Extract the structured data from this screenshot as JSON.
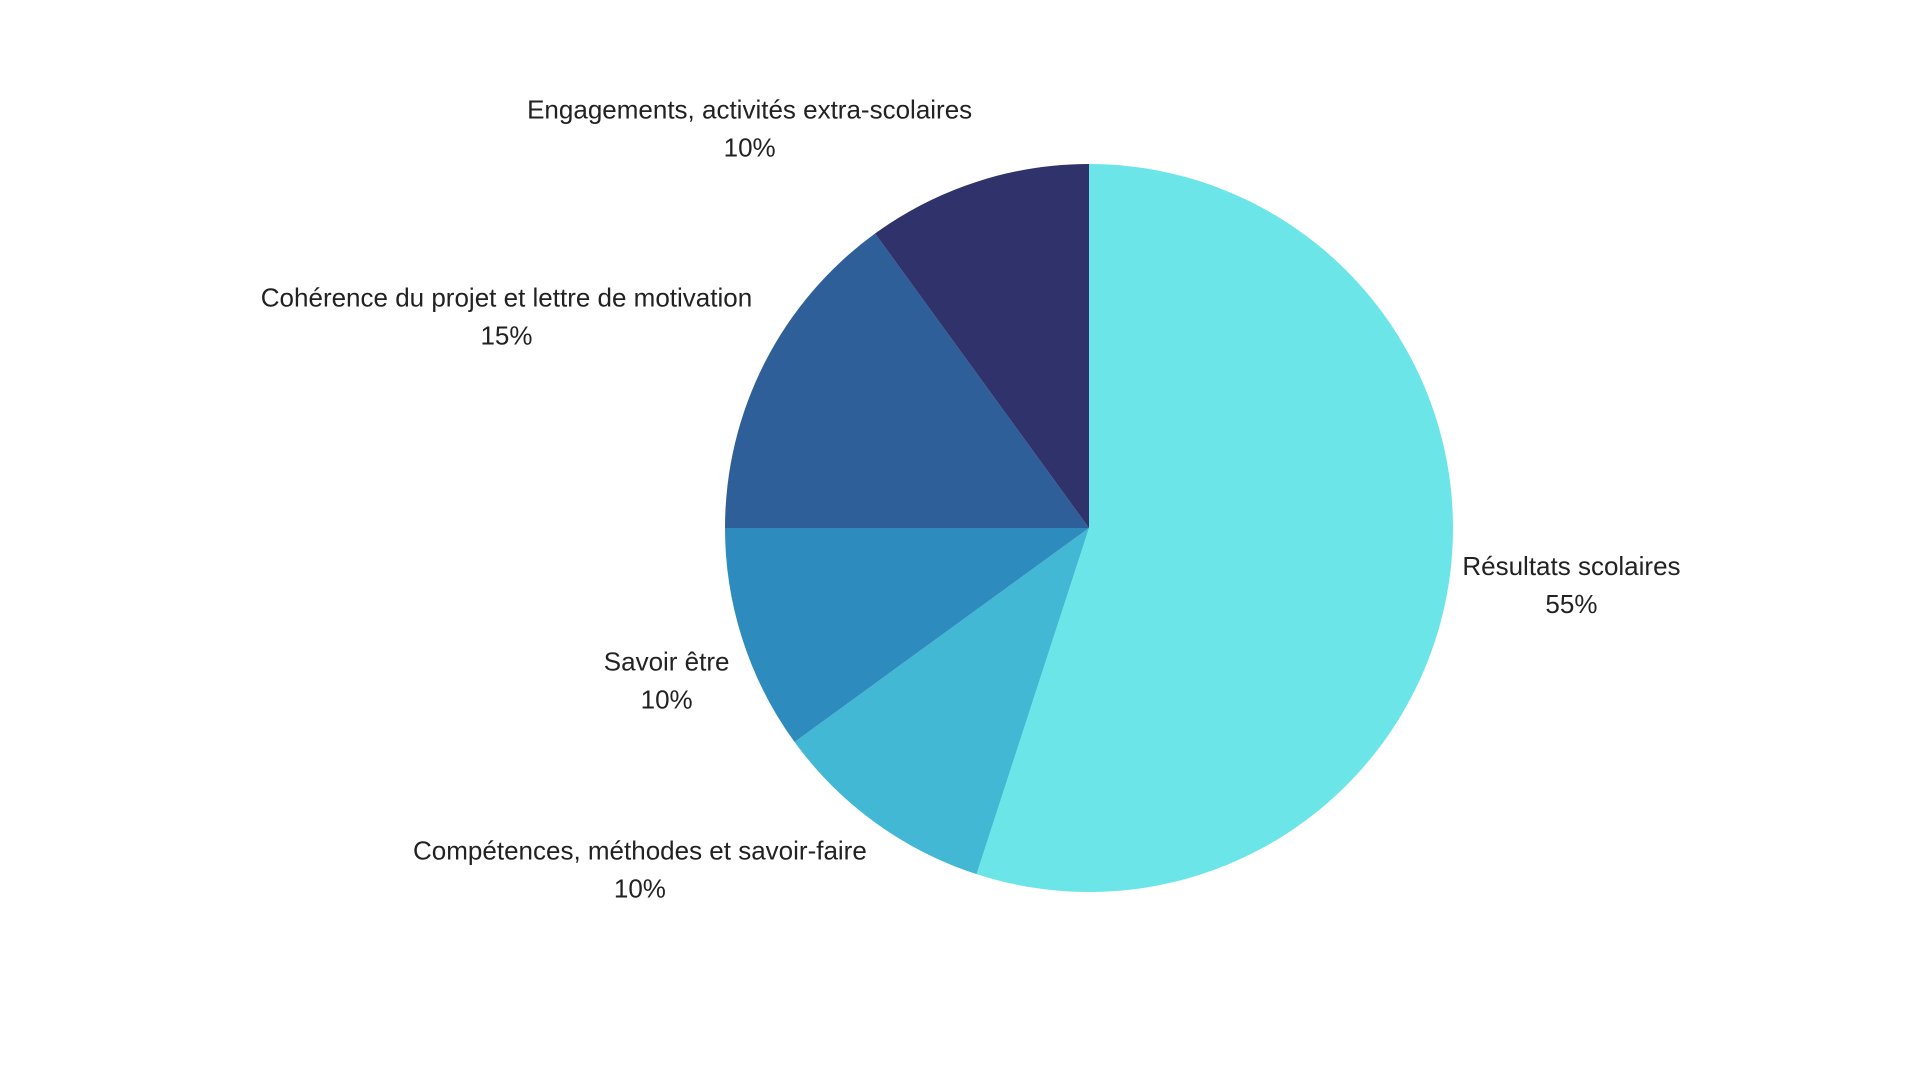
{
  "chart_data": {
    "type": "pie",
    "categories": [
      "Résultats scolaires",
      "Compétences, méthodes et savoir-faire",
      "Savoir être",
      "Cohérence du projet et lettre de motivation",
      "Engagements, activités extra-scolaires"
    ],
    "values": [
      55,
      10,
      10,
      15,
      10
    ],
    "value_labels": [
      "55%",
      "10%",
      "10%",
      "15%",
      "10%"
    ],
    "colors": [
      "#6ce5e8",
      "#43b8d4",
      "#2e8bbd",
      "#2f5f98",
      "#30336b"
    ]
  }
}
